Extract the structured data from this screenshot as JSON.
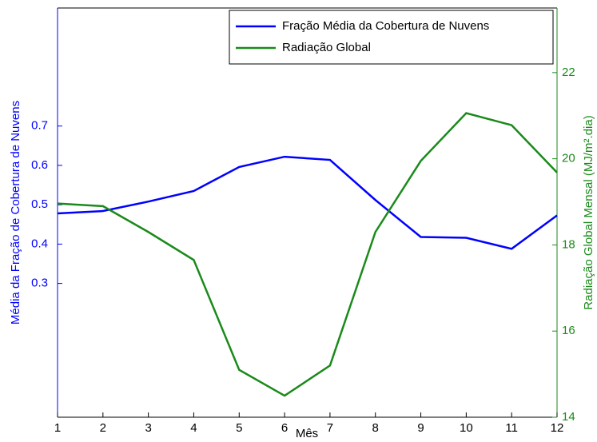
{
  "chart_data": {
    "type": "line",
    "x": [
      1,
      2,
      3,
      4,
      5,
      6,
      7,
      8,
      9,
      10,
      11,
      12
    ],
    "xlim": [
      1,
      12
    ],
    "xticks": [
      1,
      2,
      3,
      4,
      5,
      6,
      7,
      8,
      9,
      10,
      11,
      12
    ],
    "xlabel": "Mês",
    "ylabel": "Média da Fração de Cobertura de Nuvens",
    "y2label": "Radiação Global Mensal (MJ/m².dia)",
    "ylim": [
      -0.04,
      1.0
    ],
    "yticks": [
      0.3,
      0.4,
      0.5,
      0.6,
      0.7
    ],
    "y2lim": [
      14,
      23.5
    ],
    "y2ticks": [
      14,
      16,
      18,
      20,
      22
    ],
    "legend": "upper right",
    "series": [
      {
        "name": "Fração Média da Cobertura de Nuvens",
        "color": "#0000ff",
        "axis": "y",
        "values": [
          0.478,
          0.484,
          0.508,
          0.535,
          0.596,
          0.622,
          0.614,
          0.512,
          0.418,
          0.416,
          0.388,
          0.473
        ]
      },
      {
        "name": "Radiação Global",
        "color": "#1a8a1a",
        "axis": "y2",
        "values": [
          18.96,
          18.9,
          18.3,
          17.65,
          15.1,
          14.5,
          15.2,
          18.3,
          19.95,
          21.06,
          20.78,
          19.68
        ]
      }
    ]
  }
}
